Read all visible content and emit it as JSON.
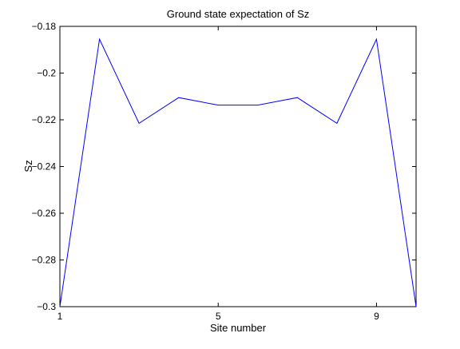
{
  "chart_data": {
    "type": "line",
    "title": "Ground state expectation of Sz",
    "xlabel": "Site number",
    "ylabel": "Sz",
    "xlim": [
      1,
      10
    ],
    "ylim": [
      -0.3,
      -0.18
    ],
    "xticks": [
      1,
      5,
      9
    ],
    "xtick_labels": [
      "1",
      "5",
      "9"
    ],
    "yticks": [
      -0.3,
      -0.28,
      -0.26,
      -0.24,
      -0.22,
      -0.2,
      -0.18
    ],
    "ytick_labels": [
      "−0.3",
      "−0.28",
      "−0.26",
      "−0.24",
      "−0.22",
      "−0.2",
      "−0.18"
    ],
    "grid": false,
    "series": [
      {
        "x": [
          1,
          2,
          3,
          4,
          5,
          6,
          7,
          8,
          9,
          10
        ],
        "y": [
          -0.3,
          -0.1855,
          -0.2215,
          -0.2105,
          -0.2137,
          -0.2137,
          -0.2105,
          -0.2215,
          -0.1855,
          -0.3
        ],
        "color": "#0000ff"
      }
    ]
  }
}
